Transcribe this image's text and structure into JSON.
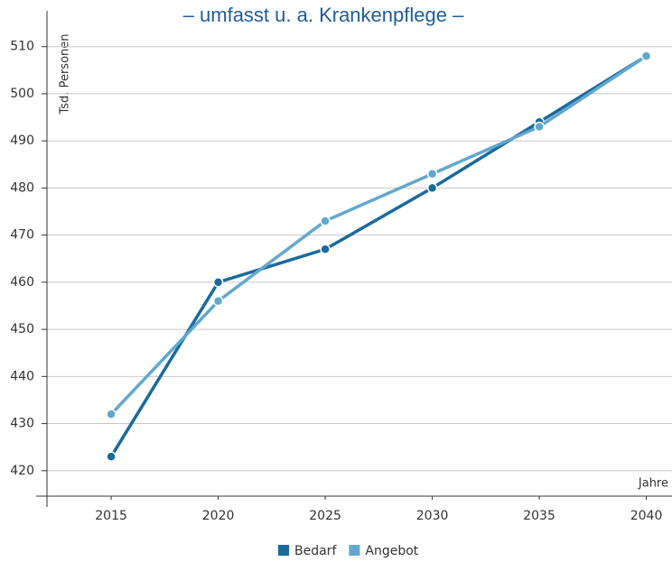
{
  "chart_data": {
    "type": "line",
    "title": "– umfasst u. a. Krankenpflege –",
    "y_label": "Tsd. Personen",
    "x_label": "Jahre",
    "x": [
      2015,
      2020,
      2025,
      2030,
      2035,
      2040
    ],
    "xlim": [
      2012,
      2041.2
    ],
    "xticks": [
      2015,
      2020,
      2025,
      2030,
      2035,
      2040
    ],
    "ylim": [
      414.6,
      517.6
    ],
    "yticks": [
      420,
      430,
      440,
      450,
      460,
      470,
      480,
      490,
      500,
      510
    ],
    "grid": true,
    "legend": "bottom",
    "series": [
      {
        "name": "Bedarf",
        "color": "#1a6a9e",
        "values": [
          423,
          460,
          467,
          480,
          494,
          508
        ]
      },
      {
        "name": "Angebot",
        "color": "#62a7cf",
        "values": [
          432,
          456,
          473,
          483,
          493,
          508
        ]
      }
    ]
  }
}
